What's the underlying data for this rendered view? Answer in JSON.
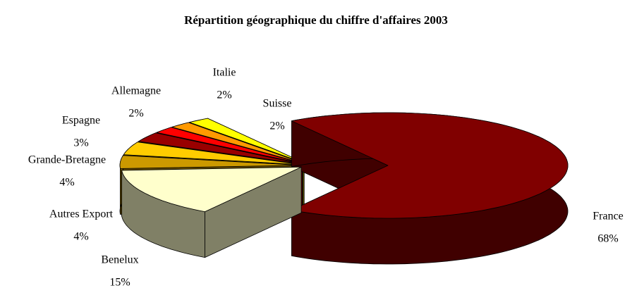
{
  "chart_data": {
    "type": "pie",
    "title": "Répartition géographique du chiffre d'affaires 2003",
    "categories": [
      "France",
      "Suisse",
      "Italie",
      "Allemagne",
      "Espagne",
      "Grande-Bretagne",
      "Autres Export",
      "Benelux"
    ],
    "values": [
      68,
      2,
      2,
      2,
      3,
      4,
      4,
      15
    ],
    "value_labels": [
      "68%",
      "2%",
      "2%",
      "2%",
      "3%",
      "4%",
      "4%",
      "15%"
    ],
    "colors": [
      "#800000",
      "#ffff00",
      "#ff9900",
      "#ff0000",
      "#990000",
      "#ffcc00",
      "#cc9900",
      "#ffffcc"
    ]
  }
}
